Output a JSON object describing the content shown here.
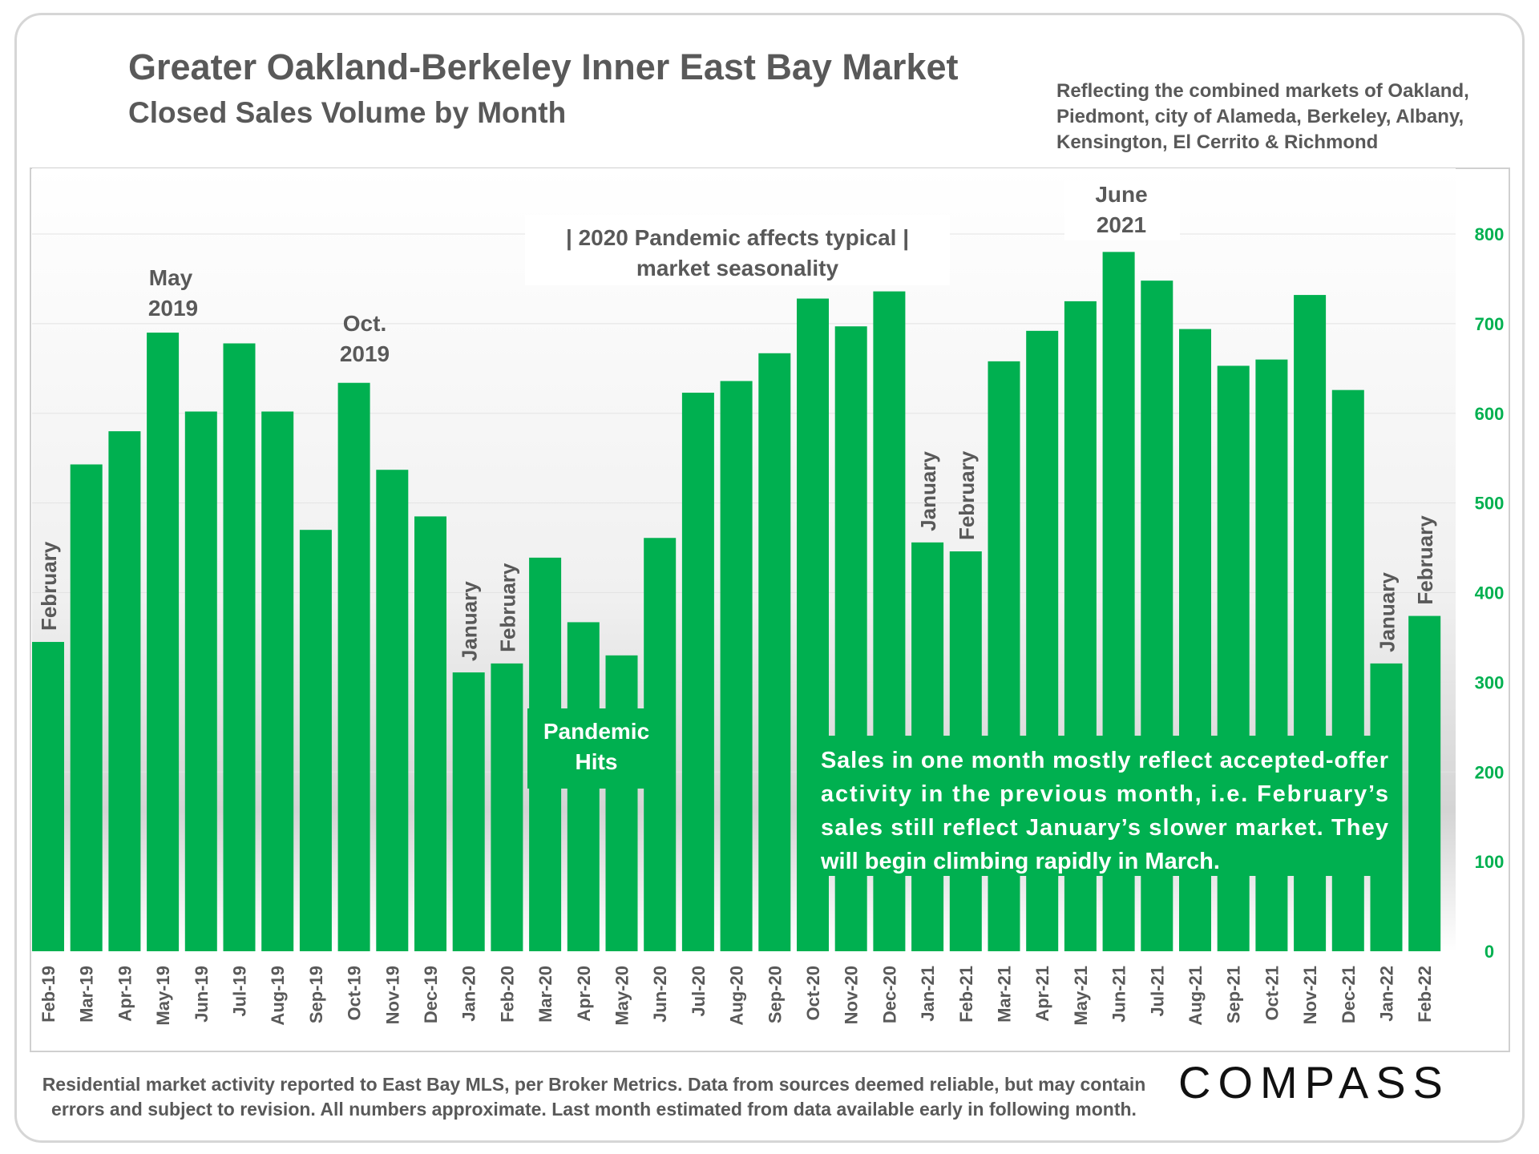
{
  "header": {
    "title": "Greater Oakland-Berkeley Inner East Bay Market",
    "subtitle": "Closed Sales Volume by Month",
    "note_lines": [
      "Reflecting the combined markets of Oakland,",
      "Piedmont, city of Alameda, Berkeley, Albany,",
      "Kensington, El Cerrito & Richmond"
    ]
  },
  "footer": {
    "lines": [
      "Residential market activity reported to East Bay MLS, per Broker Metrics. Data from sources deemed reliable, but may contain",
      "errors and subject to revision. All numbers approximate. Last month estimated from data available early in following month."
    ],
    "logo": "COMPASS"
  },
  "colors": {
    "bar": "#00b050",
    "axis_text": "#00b050",
    "text": "#595959"
  },
  "chart_data": {
    "type": "bar",
    "title": "Closed Sales Volume by Month",
    "ylim": [
      0,
      800
    ],
    "yticks": [
      0,
      100,
      200,
      300,
      400,
      500,
      600,
      700,
      800
    ],
    "y_axis_side": "right",
    "grid": true,
    "categories": [
      "Feb-19",
      "Mar-19",
      "Apr-19",
      "May-19",
      "Jun-19",
      "Jul-19",
      "Aug-19",
      "Sep-19",
      "Oct-19",
      "Nov-19",
      "Dec-19",
      "Jan-20",
      "Feb-20",
      "Mar-20",
      "Apr-20",
      "May-20",
      "Jun-20",
      "Jul-20",
      "Aug-20",
      "Sep-20",
      "Oct-20",
      "Nov-20",
      "Dec-20",
      "Jan-21",
      "Feb-21",
      "Mar-21",
      "Apr-21",
      "May-21",
      "Jun-21",
      "Jul-21",
      "Aug-21",
      "Sep-21",
      "Oct-21",
      "Nov-21",
      "Dec-21",
      "Jan-22",
      "Feb-22"
    ],
    "values": [
      345,
      543,
      580,
      690,
      602,
      678,
      602,
      470,
      634,
      537,
      485,
      311,
      321,
      439,
      367,
      330,
      461,
      623,
      636,
      667,
      728,
      697,
      736,
      456,
      446,
      658,
      692,
      725,
      780,
      748,
      694,
      653,
      660,
      732,
      626,
      321,
      374
    ],
    "bar_labels": [
      {
        "index": 0,
        "text": "February"
      },
      {
        "index": 11,
        "text": "January"
      },
      {
        "index": 12,
        "text": "February"
      },
      {
        "index": 23,
        "text": "January"
      },
      {
        "index": 24,
        "text": "February"
      },
      {
        "index": 35,
        "text": "January"
      },
      {
        "index": 36,
        "text": "February"
      }
    ],
    "annotations": {
      "may_2019": [
        "May",
        "2019"
      ],
      "oct_2019": [
        "Oct.",
        "2019"
      ],
      "june_2021": [
        "June",
        "2021"
      ],
      "pandemic_seasonality": [
        "| 2020 Pandemic affects typical |",
        "market seasonality"
      ],
      "pandemic_hits": [
        "Pandemic",
        "Hits"
      ],
      "explanation": [
        "Sales in one month mostly reflect accepted-offer",
        "activity in the previous month, i.e. February’s",
        "sales still reflect January’s slower market. They",
        "will begin climbing rapidly in March."
      ]
    }
  }
}
